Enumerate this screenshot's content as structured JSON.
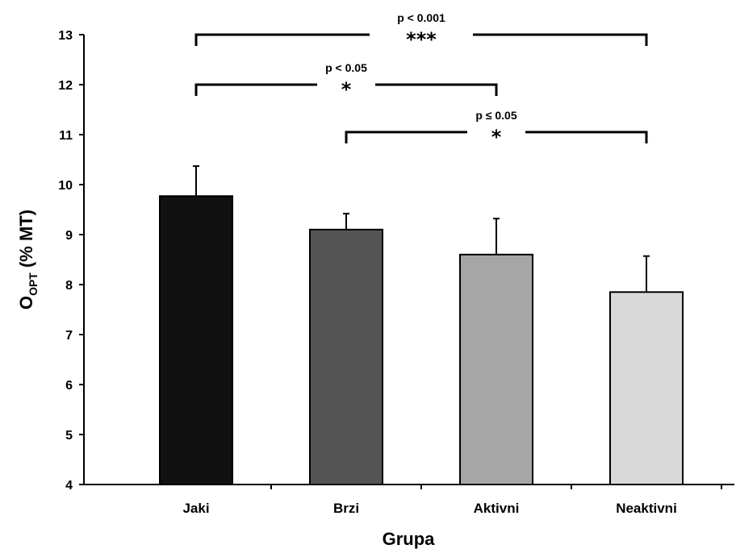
{
  "chart_data": {
    "type": "bar",
    "categories": [
      "Jaki",
      "Brzi",
      "Aktivni",
      "Neaktivni"
    ],
    "values": [
      9.77,
      9.1,
      8.6,
      7.85
    ],
    "errors": [
      0.6,
      0.32,
      0.72,
      0.72
    ],
    "colors": [
      "#111111",
      "#555555",
      "#a6a6a6",
      "#d9d9d9"
    ],
    "ylim": [
      4,
      13
    ],
    "yticks": [
      "4",
      "5",
      "6",
      "7",
      "8",
      "9",
      "10",
      "11",
      "12",
      "13"
    ],
    "ylabel": {
      "main": "O",
      "sub": "OPT",
      "rest": " (% MT)"
    },
    "xlabel": "Grupa",
    "grid": false,
    "annotations": [
      {
        "from": 0,
        "to": 3,
        "y": 13.0,
        "p": "p < 0.001",
        "stars": "***"
      },
      {
        "from": 0,
        "to": 2,
        "y": 12.0,
        "p": "p < 0.05",
        "stars": "*"
      },
      {
        "from": 1,
        "to": 3,
        "y": 11.05,
        "p": "p ≤ 0.05",
        "stars": "*"
      }
    ]
  }
}
